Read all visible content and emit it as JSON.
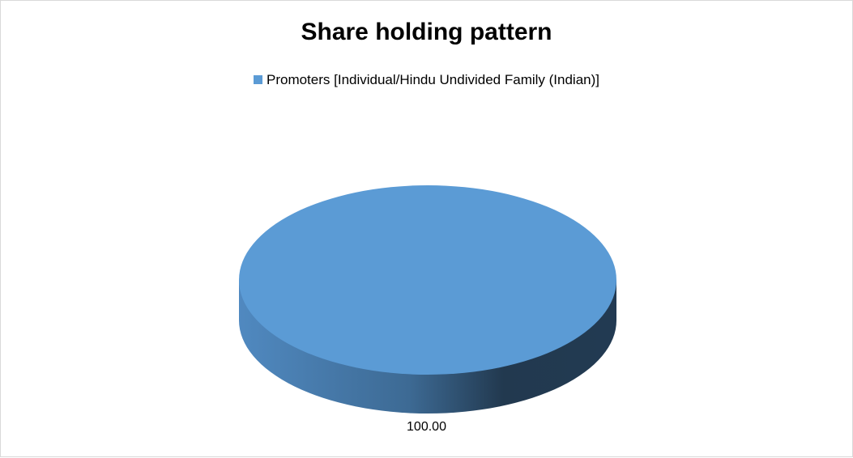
{
  "chart_data": {
    "type": "pie",
    "title": "Share holding pattern",
    "legend_position": "top",
    "categories": [
      "Promoters [Individual/Hindu Undivided Family (Indian)]"
    ],
    "values": [
      100.0
    ],
    "data_labels": [
      "100.00"
    ],
    "colors": [
      "#5b9bd5"
    ]
  }
}
